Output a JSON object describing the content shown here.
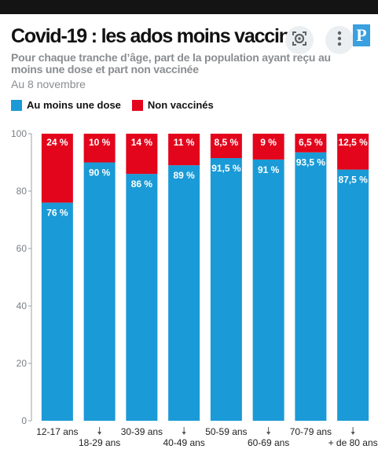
{
  "header": {
    "title": "Covid-19 : les ados moins vaccinés",
    "subtitle": "Pour chaque tranche d’âge, part de la population ayant reçu au moins une dose et part non vaccinée",
    "date": "Au 8 novembre",
    "logo": "P"
  },
  "colors": {
    "vaccinated": "#1a9ad6",
    "unvaccinated": "#e3051b",
    "axis": "#9aa0a6"
  },
  "icons": {
    "lens": "lens-icon",
    "more": "more-vert-icon"
  },
  "chart_data": {
    "type": "bar",
    "stacked": true,
    "categories": [
      "12-17 ans",
      "18-29 ans",
      "30-39 ans",
      "40-49 ans",
      "50-59 ans",
      "60-69 ans",
      "70-79 ans",
      "+ de 80 ans"
    ],
    "series": [
      {
        "name": "Au moins une dose",
        "values": [
          76,
          90,
          86,
          89,
          91.5,
          91,
          93.5,
          87.5
        ],
        "labels": [
          "76 %",
          "90 %",
          "86 %",
          "89 %",
          "91,5 %",
          "91 %",
          "93,5 %",
          "87,5 %"
        ]
      },
      {
        "name": "Non vaccinés",
        "values": [
          24,
          10,
          14,
          11,
          8.5,
          9,
          6.5,
          12.5
        ],
        "labels": [
          "24 %",
          "10 %",
          "14 %",
          "11 %",
          "8,5 %",
          "9 %",
          "6,5 %",
          "12,5 %"
        ]
      }
    ],
    "ylim": [
      0,
      100
    ],
    "yticks": [
      0,
      20,
      40,
      60,
      80,
      100
    ],
    "legend": "top-left",
    "grid": false
  }
}
